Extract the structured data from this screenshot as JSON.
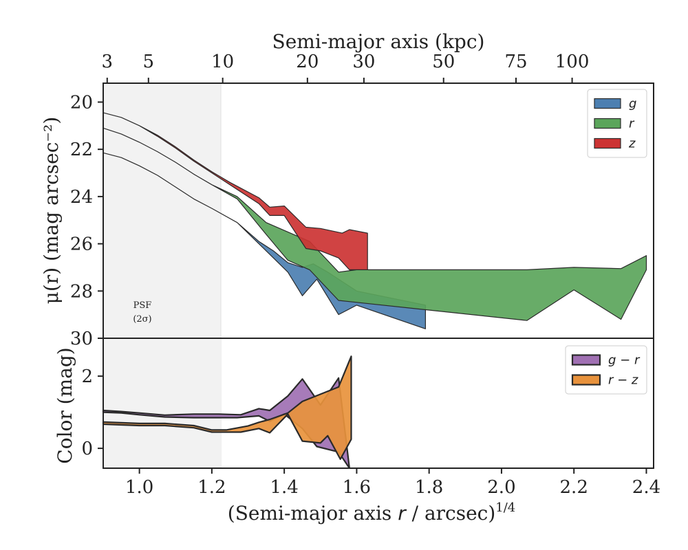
{
  "chart_data": [
    {
      "type": "area",
      "panel": "top",
      "ylabel": "μ(r) (mag arcsec⁻²)",
      "xlabel_top": "Semi-major axis (kpc)",
      "xlim": [
        0.9,
        2.42
      ],
      "ylim": [
        30,
        19.2
      ],
      "yticks": [
        "20",
        "22",
        "24",
        "26",
        "28",
        "30"
      ],
      "yticks_values": [
        20,
        22,
        24,
        26,
        28,
        30
      ],
      "top_ticks": [
        "3",
        "5",
        "10",
        "20",
        "30",
        "50",
        "75",
        "100"
      ],
      "top_ticks_values": [
        0.911,
        1.025,
        1.23,
        1.464,
        1.62,
        1.84,
        2.04,
        2.195
      ],
      "psf_label_line1": "PSF",
      "psf_label_line2": "(2σ)",
      "psf_limit": 1.225,
      "legend_position": "upper-right",
      "series": [
        {
          "name": "g",
          "color": "#4c7fb1",
          "upper": [
            [
              0.9,
              22.15
            ],
            [
              0.95,
              22.35
            ],
            [
              1.0,
              22.7
            ],
            [
              1.05,
              23.1
            ],
            [
              1.1,
              23.6
            ],
            [
              1.15,
              24.1
            ],
            [
              1.2,
              24.5
            ],
            [
              1.27,
              25.1
            ],
            [
              1.33,
              25.9
            ],
            [
              1.37,
              26.3
            ],
            [
              1.41,
              26.8
            ],
            [
              1.45,
              27.0
            ],
            [
              1.48,
              26.85
            ],
            [
              1.52,
              27.2
            ],
            [
              1.55,
              27.5
            ],
            [
              1.6,
              28.0
            ],
            [
              1.79,
              28.6
            ]
          ],
          "lower": [
            [
              1.79,
              29.6
            ],
            [
              1.6,
              28.6
            ],
            [
              1.55,
              29.0
            ],
            [
              1.49,
              27.5
            ],
            [
              1.45,
              28.2
            ],
            [
              1.41,
              27.2
            ],
            [
              1.37,
              26.6
            ],
            [
              1.33,
              26.0
            ],
            [
              1.27,
              25.1
            ],
            [
              1.2,
              24.5
            ],
            [
              1.15,
              24.1
            ],
            [
              1.1,
              23.6
            ],
            [
              1.05,
              23.1
            ],
            [
              1.0,
              22.7
            ],
            [
              0.95,
              22.35
            ],
            [
              0.9,
              22.15
            ]
          ]
        },
        {
          "name": "r",
          "color": "#5ba55b",
          "upper": [
            [
              0.9,
              21.1
            ],
            [
              0.95,
              21.35
            ],
            [
              1.0,
              21.7
            ],
            [
              1.05,
              22.1
            ],
            [
              1.1,
              22.55
            ],
            [
              1.15,
              23.05
            ],
            [
              1.2,
              23.5
            ],
            [
              1.27,
              24.0
            ],
            [
              1.35,
              25.1
            ],
            [
              1.41,
              25.5
            ],
            [
              1.47,
              25.9
            ],
            [
              1.55,
              27.2
            ],
            [
              1.6,
              27.1
            ],
            [
              2.07,
              27.1
            ],
            [
              2.2,
              27.0
            ],
            [
              2.33,
              27.05
            ],
            [
              2.4,
              26.5
            ]
          ],
          "lower": [
            [
              2.4,
              27.1
            ],
            [
              2.33,
              29.2
            ],
            [
              2.2,
              27.95
            ],
            [
              2.07,
              29.25
            ],
            [
              1.55,
              28.4
            ],
            [
              1.47,
              27.1
            ],
            [
              1.41,
              26.7
            ],
            [
              1.35,
              25.6
            ],
            [
              1.27,
              24.1
            ],
            [
              1.2,
              23.5
            ],
            [
              1.15,
              23.05
            ],
            [
              1.1,
              22.55
            ],
            [
              1.05,
              22.1
            ],
            [
              1.0,
              21.7
            ],
            [
              0.95,
              21.35
            ],
            [
              0.9,
              21.1
            ]
          ]
        },
        {
          "name": "z",
          "color": "#cc3333",
          "upper": [
            [
              0.9,
              20.45
            ],
            [
              0.95,
              20.65
            ],
            [
              1.0,
              21.0
            ],
            [
              1.05,
              21.4
            ],
            [
              1.1,
              21.9
            ],
            [
              1.15,
              22.45
            ],
            [
              1.2,
              22.95
            ],
            [
              1.25,
              23.4
            ],
            [
              1.33,
              24.05
            ],
            [
              1.36,
              24.45
            ],
            [
              1.4,
              24.4
            ],
            [
              1.46,
              25.3
            ],
            [
              1.5,
              25.35
            ],
            [
              1.53,
              25.45
            ],
            [
              1.56,
              25.55
            ],
            [
              1.58,
              25.4
            ],
            [
              1.63,
              25.55
            ]
          ],
          "lower": [
            [
              1.63,
              27.1
            ],
            [
              1.58,
              27.1
            ],
            [
              1.55,
              26.6
            ],
            [
              1.5,
              26.3
            ],
            [
              1.46,
              26.2
            ],
            [
              1.4,
              24.8
            ],
            [
              1.36,
              24.8
            ],
            [
              1.33,
              24.3
            ],
            [
              1.25,
              23.5
            ],
            [
              1.2,
              23.0
            ],
            [
              1.15,
              22.5
            ],
            [
              1.1,
              21.95
            ],
            [
              1.05,
              21.45
            ],
            [
              1.0,
              21.0
            ],
            [
              0.95,
              20.65
            ],
            [
              0.9,
              20.45
            ]
          ]
        }
      ]
    },
    {
      "type": "area",
      "panel": "bottom",
      "ylabel": "Color (mag)",
      "xlabel": "(Semi-major axis r / arcsec)^1/4",
      "xlabel_main": "(Semi-major axis ",
      "xlabel_var": "r",
      "xlabel_rest": " / arcsec)",
      "xlabel_sup": "1/4",
      "xlim": [
        0.9,
        2.42
      ],
      "ylim": [
        -0.55,
        3.05
      ],
      "xticks": [
        "1.0",
        "1.2",
        "1.4",
        "1.6",
        "1.8",
        "2.0",
        "2.2",
        "2.4"
      ],
      "xticks_values": [
        1.0,
        1.2,
        1.4,
        1.6,
        1.8,
        2.0,
        2.2,
        2.4
      ],
      "yticks": [
        "0",
        "2"
      ],
      "yticks_values": [
        0,
        2
      ],
      "legend_position": "upper-right",
      "series": [
        {
          "name": "g − r",
          "color": "#a070b3",
          "upper": [
            [
              0.9,
              1.05
            ],
            [
              0.95,
              1.02
            ],
            [
              1.0,
              0.98
            ],
            [
              1.07,
              0.92
            ],
            [
              1.15,
              0.95
            ],
            [
              1.22,
              0.95
            ],
            [
              1.28,
              0.93
            ],
            [
              1.33,
              1.1
            ],
            [
              1.36,
              1.05
            ],
            [
              1.41,
              1.45
            ],
            [
              1.45,
              1.92
            ],
            [
              1.5,
              1.2
            ],
            [
              1.55,
              1.95
            ],
            [
              1.58,
              -0.55
            ]
          ],
          "lower": [
            [
              1.58,
              -0.55
            ],
            [
              1.55,
              -0.1
            ],
            [
              1.49,
              0.05
            ],
            [
              1.45,
              0.55
            ],
            [
              1.4,
              0.95
            ],
            [
              1.36,
              0.75
            ],
            [
              1.33,
              0.9
            ],
            [
              1.27,
              0.85
            ],
            [
              1.22,
              0.85
            ],
            [
              1.15,
              0.85
            ],
            [
              1.07,
              0.87
            ],
            [
              1.0,
              0.93
            ],
            [
              0.95,
              0.98
            ],
            [
              0.9,
              1.0
            ]
          ]
        },
        {
          "name": "r − z",
          "color": "#e8923c",
          "upper": [
            [
              0.9,
              0.73
            ],
            [
              0.95,
              0.71
            ],
            [
              1.0,
              0.69
            ],
            [
              1.07,
              0.69
            ],
            [
              1.15,
              0.63
            ],
            [
              1.2,
              0.51
            ],
            [
              1.24,
              0.51
            ],
            [
              1.3,
              0.62
            ],
            [
              1.33,
              0.72
            ],
            [
              1.36,
              0.8
            ],
            [
              1.41,
              0.98
            ],
            [
              1.45,
              1.3
            ],
            [
              1.55,
              1.7
            ],
            [
              1.585,
              2.55
            ]
          ],
          "lower": [
            [
              1.585,
              0.25
            ],
            [
              1.555,
              -0.3
            ],
            [
              1.52,
              0.35
            ],
            [
              1.5,
              0.15
            ],
            [
              1.45,
              0.2
            ],
            [
              1.41,
              0.95
            ],
            [
              1.36,
              0.43
            ],
            [
              1.33,
              0.55
            ],
            [
              1.28,
              0.45
            ],
            [
              1.2,
              0.45
            ],
            [
              1.15,
              0.57
            ],
            [
              1.07,
              0.63
            ],
            [
              1.0,
              0.63
            ],
            [
              0.95,
              0.65
            ],
            [
              0.9,
              0.67
            ]
          ]
        }
      ]
    }
  ]
}
